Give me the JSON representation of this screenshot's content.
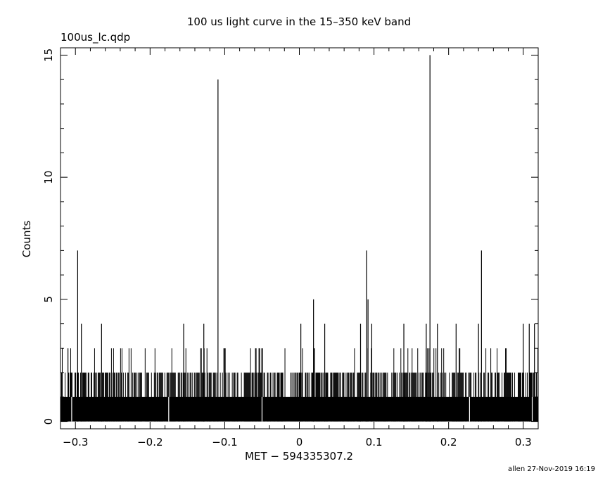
{
  "title": "100 us light curve in the 15–350 keV band",
  "filename": "100us_lc.qdp",
  "footer": "allen 27-Nov-2019 16:19",
  "chart_data": {
    "type": "bar",
    "title": "100 us light curve in the 15–350 keV band",
    "xlabel": "MET − 594335307.2",
    "ylabel": "Counts",
    "xlim": [
      -0.32,
      0.32
    ],
    "ylim": [
      -0.3,
      15.3
    ],
    "xticks": [
      -0.3,
      -0.2,
      -0.1,
      0,
      0.1,
      0.2,
      0.3
    ],
    "xtick_labels": [
      "−0.3",
      "−0.2",
      "−0.1",
      "0",
      "0.1",
      "0.2",
      "0.3"
    ],
    "yticks": [
      0,
      5,
      10,
      15
    ],
    "ytick_labels": [
      "0",
      "5",
      "10",
      "15"
    ],
    "bin_width": 0.0001,
    "baseline_counts": 1,
    "notable_bins": [
      {
        "x": -0.297,
        "y": 7
      },
      {
        "x": -0.109,
        "y": 14
      },
      {
        "x": 0.019,
        "y": 5
      },
      {
        "x": 0.09,
        "y": 7
      },
      {
        "x": 0.092,
        "y": 5
      },
      {
        "x": 0.175,
        "y": 15
      },
      {
        "x": 0.244,
        "y": 7
      },
      {
        "x": -0.31,
        "y": 3
      },
      {
        "x": -0.292,
        "y": 4
      },
      {
        "x": -0.265,
        "y": 4
      },
      {
        "x": -0.155,
        "y": 4
      },
      {
        "x": -0.128,
        "y": 4
      },
      {
        "x": 0.002,
        "y": 4
      },
      {
        "x": 0.034,
        "y": 4
      },
      {
        "x": 0.082,
        "y": 4
      },
      {
        "x": 0.097,
        "y": 4
      },
      {
        "x": 0.14,
        "y": 4
      },
      {
        "x": 0.17,
        "y": 4
      },
      {
        "x": 0.185,
        "y": 4
      },
      {
        "x": 0.21,
        "y": 4
      },
      {
        "x": 0.24,
        "y": 4
      },
      {
        "x": 0.3,
        "y": 4
      },
      {
        "x": 0.308,
        "y": 4
      },
      {
        "x": 0.315,
        "y": 4
      }
    ],
    "zero_bins": [
      -0.305,
      -0.175,
      -0.05,
      0.228,
      0.312
    ]
  }
}
